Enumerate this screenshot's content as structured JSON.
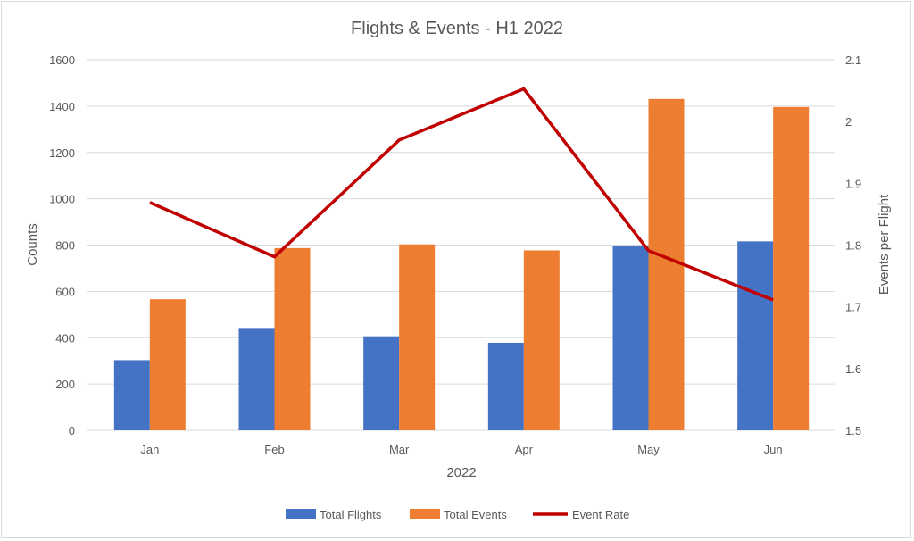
{
  "chart_data": {
    "type": "bar+line",
    "title": "Flights & Events - H1 2022",
    "xlabel": "2022",
    "ylabel": "Counts",
    "y2label": "Events per Flight",
    "categories": [
      "Jan",
      "Feb",
      "Mar",
      "Apr",
      "May",
      "Jun"
    ],
    "ylim": [
      0,
      1600
    ],
    "yticks": [
      "0",
      "200",
      "400",
      "600",
      "800",
      "1000",
      "1200",
      "1400",
      "1600"
    ],
    "y2lim": [
      1.5,
      2.1
    ],
    "y2ticks": [
      "1.5",
      "1.6",
      "1.7",
      "1.8",
      "1.9",
      "2",
      "2.1"
    ],
    "grid": true,
    "legend_position": "bottom",
    "series": [
      {
        "name": "Total Flights",
        "type": "bar",
        "axis": "left",
        "color": "#4472C4",
        "values": [
          303,
          442,
          406,
          378,
          798,
          816
        ]
      },
      {
        "name": "Total Events",
        "type": "bar",
        "axis": "left",
        "color": "#ED7D31",
        "values": [
          566,
          787,
          803,
          777,
          1431,
          1396
        ]
      },
      {
        "name": "Event Rate",
        "type": "line",
        "axis": "right",
        "color": "#C00000",
        "values": [
          1.869,
          1.781,
          1.97,
          2.053,
          1.791,
          1.711
        ]
      }
    ]
  }
}
